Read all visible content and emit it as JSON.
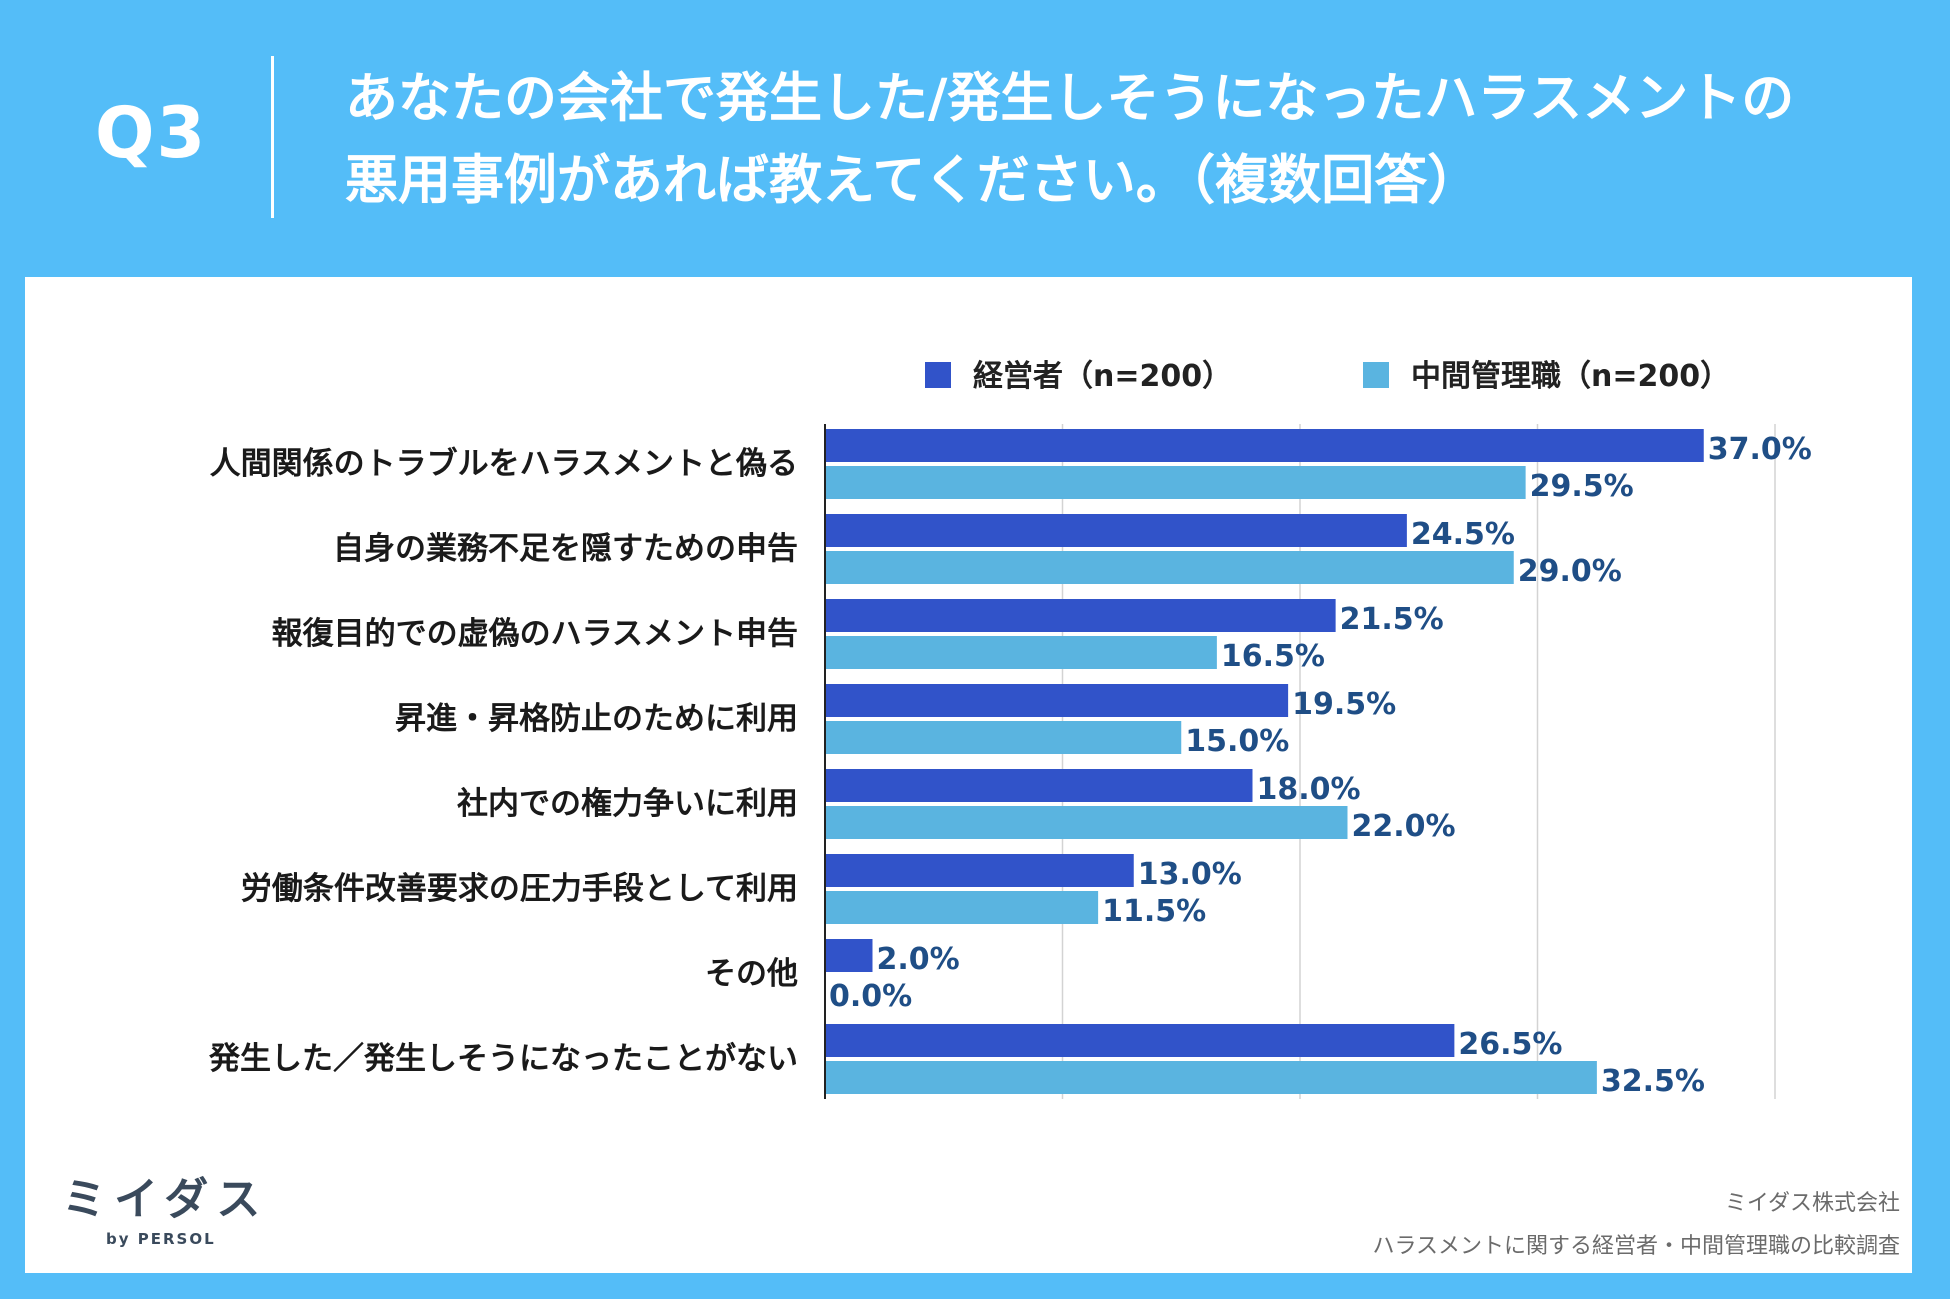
{
  "header": {
    "question_label": "Q3",
    "title_line1": "あなたの会社で発生した/発生しそうになったハラスメントの",
    "title_line2": "悪用事例があれば教えてください。（複数回答）"
  },
  "colors": {
    "background": "#54bdf8",
    "series1": "#3153c9",
    "series2": "#5ab4e0",
    "value_text": "#1f4e86"
  },
  "chart_data": {
    "type": "bar",
    "orientation": "horizontal",
    "categories": [
      "人間関係のトラブルをハラスメントと偽る",
      "自身の業務不足を隠すための申告",
      "報復目的での虚偽のハラスメント申告",
      "昇進・昇格防止のために利用",
      "社内での権力争いに利用",
      "労働条件改善要求の圧力手段として利用",
      "その他",
      "発生した／発生しそうになったことがない"
    ],
    "series": [
      {
        "name": "経営者（n=200）",
        "values": [
          37.0,
          24.5,
          21.5,
          19.5,
          18.0,
          13.0,
          2.0,
          26.5
        ]
      },
      {
        "name": "中間管理職（n=200）",
        "values": [
          29.5,
          29.0,
          16.5,
          15.0,
          22.0,
          11.5,
          0.0,
          32.5
        ]
      }
    ],
    "value_suffix": "%",
    "xlim": [
      0,
      40
    ],
    "gridlines": [
      10,
      20,
      30,
      40
    ],
    "legend_position": "top",
    "grid": true
  },
  "footer": {
    "logo_text": "ミイダス",
    "logo_sub": "by PERSOL",
    "credit_company": "ミイダス株式会社",
    "credit_survey": "ハラスメントに関する経営者・中間管理職の比較調査"
  }
}
